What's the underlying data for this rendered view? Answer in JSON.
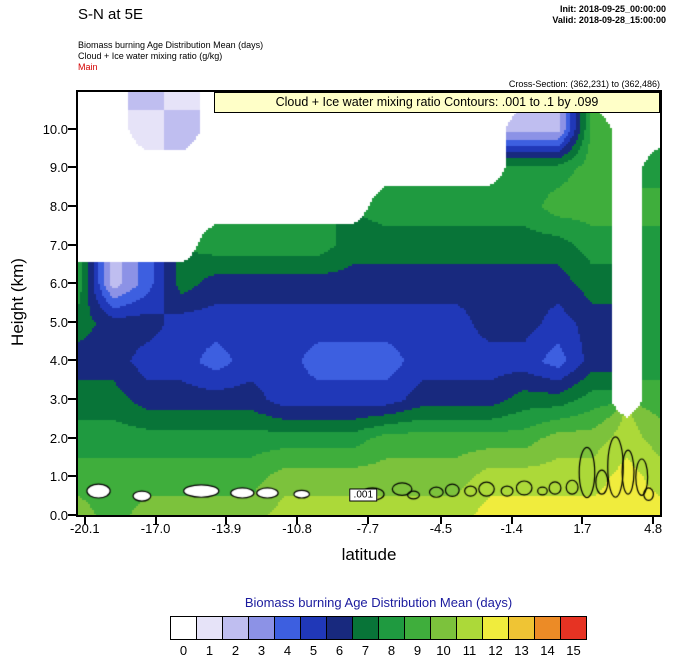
{
  "header": {
    "title": "S-N at 5E",
    "init_line": "Init: 2018-09-25_00:00:00",
    "valid_line": "Valid: 2018-09-28_15:00:00",
    "field_line1": "Biomass burning Age Distribution Mean   (days)",
    "field_line2": "Cloud + Ice water mixing ratio   (g/kg)",
    "field_line3": "Main",
    "cross_section": "Cross-Section: (362,231) to (362,486)"
  },
  "plot": {
    "banner": "Cloud + Ice water mixing ratio Contours: .001 to .1 by .099",
    "contour_label": ".001",
    "ylabel": "Height (km)",
    "xlabel": "latitude",
    "y_ticks": [
      "0.0",
      "1.0",
      "2.0",
      "3.0",
      "4.0",
      "5.0",
      "6.0",
      "7.0",
      "8.0",
      "9.0",
      "10.0"
    ],
    "x_ticks": [
      "-20.1",
      "-17.0",
      "-13.9",
      "-10.8",
      "-7.7",
      "-4.5",
      "-1.4",
      "1.7",
      "4.8"
    ]
  },
  "legend": {
    "title": "Biomass burning Age Distribution Mean  (days)",
    "labels": [
      "0",
      "1",
      "2",
      "3",
      "4",
      "5",
      "6",
      "7",
      "8",
      "9",
      "10",
      "11",
      "12",
      "13",
      "14",
      "15"
    ]
  },
  "chart_data": {
    "type": "heatmap",
    "title": "S-N at 5E",
    "subtitle": "Biomass burning Age Distribution Mean (days) with Cloud + Ice water mixing ratio contours (g/kg)",
    "xlabel": "latitude",
    "ylabel": "Height (km)",
    "xlim": [
      -20.4,
      5.1
    ],
    "ylim": [
      0,
      10.95
    ],
    "x_tick_values": [
      -20.1,
      -17.0,
      -13.9,
      -10.8,
      -7.7,
      -4.5,
      -1.4,
      1.7,
      4.8
    ],
    "y_tick_values": [
      0,
      1,
      2,
      3,
      4,
      5,
      6,
      7,
      8,
      9,
      10
    ],
    "units": "days",
    "bin_values": [
      0,
      1,
      2,
      3,
      4,
      5,
      6,
      7,
      8,
      9,
      10,
      11,
      12,
      13,
      14,
      15
    ],
    "colors": [
      "#FFFFFF",
      "#E6E3F8",
      "#BFBEF0",
      "#8C92E6",
      "#3D5FE0",
      "#2038B8",
      "#18297E",
      "#087438",
      "#1F9A40",
      "#3FAE3C",
      "#7CC23C",
      "#ACD939",
      "#F0EC3D",
      "#EFC434",
      "#EC8B26",
      "#E63323"
    ],
    "grid": {
      "lats": [
        -20.4,
        -18.9,
        -17.4,
        -15.9,
        -14.4,
        -12.9,
        -11.4,
        -9.9,
        -8.4,
        -6.9,
        -5.4,
        -3.9,
        -2.4,
        -0.9,
        0.6,
        2.1,
        3.6,
        5.1
      ],
      "heights": [
        0,
        1,
        2,
        3,
        4,
        5,
        6,
        7,
        8,
        9,
        10,
        11
      ],
      "age_days": [
        [
          10,
          9,
          10,
          10,
          10,
          10,
          11,
          11,
          11,
          11,
          11,
          11,
          12,
          12,
          12,
          12,
          12,
          12
        ],
        [
          9,
          9,
          9,
          9,
          9,
          9,
          10,
          10,
          10,
          10,
          10,
          10,
          11,
          11,
          11,
          11,
          12,
          11
        ],
        [
          8,
          8,
          8,
          8,
          8,
          8,
          8,
          8,
          8,
          9,
          9,
          9,
          9,
          9,
          10,
          10,
          11,
          10
        ],
        [
          7,
          7,
          6,
          6,
          6,
          6,
          5,
          5,
          5,
          5,
          6,
          6,
          6,
          7,
          7,
          8,
          0,
          9
        ],
        [
          6,
          6,
          5,
          5,
          4,
          5,
          5,
          4,
          4,
          4,
          5,
          5,
          5,
          5,
          4,
          6,
          0,
          8
        ],
        [
          7,
          6,
          6,
          5,
          5,
          5,
          5,
          5,
          5,
          5,
          5,
          5,
          6,
          6,
          5,
          6,
          0,
          8
        ],
        [
          8,
          2,
          4,
          7,
          6,
          6,
          6,
          6,
          6,
          6,
          6,
          6,
          6,
          6,
          6,
          7,
          0,
          8
        ],
        [
          0,
          0,
          0,
          0,
          8,
          8,
          8,
          8,
          7,
          7,
          7,
          7,
          7,
          7,
          7,
          8,
          0,
          8
        ],
        [
          0,
          0,
          0,
          0,
          0,
          0,
          0,
          0,
          0,
          8,
          8,
          8,
          8,
          8,
          9,
          9,
          0,
          9
        ],
        [
          0,
          0,
          0,
          0,
          0,
          0,
          0,
          0,
          0,
          0,
          0,
          0,
          0,
          8,
          8,
          9,
          0,
          8
        ],
        [
          0,
          0,
          1,
          2,
          0,
          0,
          0,
          0,
          0,
          0,
          0,
          0,
          0,
          2,
          2,
          9,
          0,
          0
        ],
        [
          0,
          0,
          2,
          1,
          0,
          0,
          0,
          0,
          0,
          0,
          0,
          0,
          0,
          0,
          0,
          0,
          0,
          0
        ]
      ]
    },
    "cloud_contours": {
      "level_text": ".001 to .1 by .099",
      "label": ".001",
      "label_pos": {
        "lat": -7.9,
        "height": 0.52
      },
      "ellipses": [
        {
          "lat": -19.5,
          "h": 0.62,
          "rlat": 0.51,
          "rh": 0.18,
          "fill": "white"
        },
        {
          "lat": -17.6,
          "h": 0.49,
          "rlat": 0.39,
          "rh": 0.13,
          "fill": "white"
        },
        {
          "lat": -15.0,
          "h": 0.62,
          "rlat": 0.77,
          "rh": 0.16,
          "fill": "white"
        },
        {
          "lat": -13.2,
          "h": 0.57,
          "rlat": 0.51,
          "rh": 0.13,
          "fill": "white"
        },
        {
          "lat": -12.1,
          "h": 0.57,
          "rlat": 0.47,
          "rh": 0.13,
          "fill": "white"
        },
        {
          "lat": -10.6,
          "h": 0.54,
          "rlat": 0.34,
          "rh": 0.1,
          "fill": "white"
        },
        {
          "lat": -7.5,
          "h": 0.54,
          "rlat": 0.51,
          "rh": 0.16,
          "fill": "none"
        },
        {
          "lat": -6.2,
          "h": 0.67,
          "rlat": 0.43,
          "rh": 0.16,
          "fill": "none"
        },
        {
          "lat": -5.7,
          "h": 0.52,
          "rlat": 0.26,
          "rh": 0.1,
          "fill": "none"
        },
        {
          "lat": -4.7,
          "h": 0.59,
          "rlat": 0.3,
          "rh": 0.13,
          "fill": "none"
        },
        {
          "lat": -4.0,
          "h": 0.64,
          "rlat": 0.3,
          "rh": 0.16,
          "fill": "none"
        },
        {
          "lat": -3.2,
          "h": 0.62,
          "rlat": 0.26,
          "rh": 0.13,
          "fill": "none"
        },
        {
          "lat": -2.5,
          "h": 0.67,
          "rlat": 0.34,
          "rh": 0.18,
          "fill": "none"
        },
        {
          "lat": -1.6,
          "h": 0.62,
          "rlat": 0.26,
          "rh": 0.13,
          "fill": "none"
        },
        {
          "lat": -0.85,
          "h": 0.7,
          "rlat": 0.34,
          "rh": 0.18,
          "fill": "none"
        },
        {
          "lat": -0.05,
          "h": 0.62,
          "rlat": 0.21,
          "rh": 0.1,
          "fill": "none"
        },
        {
          "lat": 0.5,
          "h": 0.7,
          "rlat": 0.26,
          "rh": 0.16,
          "fill": "none"
        },
        {
          "lat": 1.25,
          "h": 0.72,
          "rlat": 0.26,
          "rh": 0.18,
          "fill": "none"
        },
        {
          "lat": 1.9,
          "h": 1.1,
          "rlat": 0.34,
          "rh": 0.65,
          "fill": "none"
        },
        {
          "lat": 2.55,
          "h": 0.85,
          "rlat": 0.26,
          "rh": 0.31,
          "fill": "none"
        },
        {
          "lat": 3.15,
          "h": 1.24,
          "rlat": 0.34,
          "rh": 0.78,
          "fill": "none"
        },
        {
          "lat": 3.7,
          "h": 1.11,
          "rlat": 0.26,
          "rh": 0.57,
          "fill": "none"
        },
        {
          "lat": 4.3,
          "h": 0.98,
          "rlat": 0.26,
          "rh": 0.47,
          "fill": "none"
        },
        {
          "lat": 4.6,
          "h": 0.54,
          "rlat": 0.21,
          "rh": 0.16,
          "fill": "none"
        }
      ]
    },
    "legend_title": "Biomass burning Age Distribution Mean  (days)"
  }
}
